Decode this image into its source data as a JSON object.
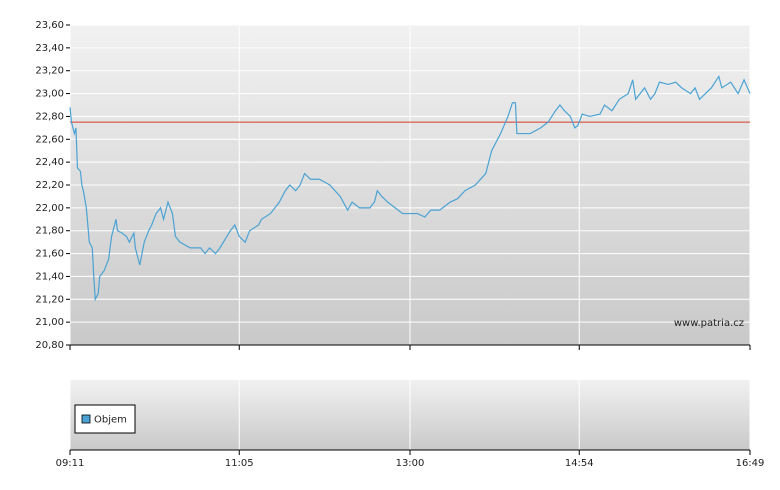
{
  "chart_data": {
    "type": "line",
    "annotation": "www.patria.cz",
    "volume_legend": "Objem",
    "reference_line": {
      "value": 22.75,
      "color": "#d03a2a"
    },
    "xlim": [
      551,
      1009
    ],
    "xticks": [
      {
        "value": 551,
        "label": "09:11"
      },
      {
        "value": 665,
        "label": "11:05"
      },
      {
        "value": 780,
        "label": "13:00"
      },
      {
        "value": 894,
        "label": "14:54"
      },
      {
        "value": 1009,
        "label": "16:49"
      }
    ],
    "ylim": [
      20.8,
      23.6
    ],
    "yticks": [
      {
        "value": 20.8,
        "label": "20,80"
      },
      {
        "value": 21.0,
        "label": "21,00"
      },
      {
        "value": 21.2,
        "label": "21,20"
      },
      {
        "value": 21.4,
        "label": "21,40"
      },
      {
        "value": 21.6,
        "label": "21,60"
      },
      {
        "value": 21.8,
        "label": "21,80"
      },
      {
        "value": 22.0,
        "label": "22,00"
      },
      {
        "value": 22.2,
        "label": "22,20"
      },
      {
        "value": 22.4,
        "label": "22,40"
      },
      {
        "value": 22.6,
        "label": "22,60"
      },
      {
        "value": 22.8,
        "label": "22,80"
      },
      {
        "value": 23.0,
        "label": "23,00"
      },
      {
        "value": 23.2,
        "label": "23,20"
      },
      {
        "value": 23.4,
        "label": "23,40"
      },
      {
        "value": 23.6,
        "label": "23,60"
      }
    ],
    "grid": true,
    "x": [
      551,
      552,
      554,
      555,
      556,
      558,
      559,
      560,
      562,
      563,
      564,
      566,
      567,
      568,
      570,
      571,
      574,
      577,
      579,
      582,
      583,
      586,
      589,
      591,
      594,
      595,
      598,
      601,
      604,
      606,
      609,
      612,
      614,
      617,
      620,
      622,
      625,
      632,
      639,
      642,
      645,
      649,
      652,
      659,
      662,
      665,
      669,
      672,
      678,
      680,
      686,
      692,
      696,
      699,
      703,
      706,
      709,
      713,
      716,
      719,
      726,
      733,
      738,
      741,
      746,
      753,
      756,
      758,
      761,
      765,
      770,
      775,
      780,
      785,
      790,
      794,
      800,
      807,
      812,
      817,
      824,
      831,
      835,
      841,
      846,
      849,
      851,
      852,
      858,
      861,
      868,
      873,
      878,
      881,
      884,
      888,
      891,
      893,
      896,
      901,
      908,
      911,
      916,
      921,
      927,
      930,
      932,
      938,
      942,
      945,
      948,
      954,
      959,
      963,
      969,
      972,
      975,
      979,
      983,
      988,
      990,
      996,
      1001,
      1005,
      1009
    ],
    "series": [
      {
        "color": "#4aa3d4",
        "values": [
          22.88,
          22.75,
          22.65,
          22.7,
          22.35,
          22.32,
          22.2,
          22.15,
          22.0,
          21.85,
          21.7,
          21.65,
          21.4,
          21.2,
          21.25,
          21.4,
          21.45,
          21.55,
          21.75,
          21.9,
          21.8,
          21.78,
          21.75,
          21.7,
          21.78,
          21.65,
          21.5,
          21.7,
          21.8,
          21.85,
          21.95,
          22.0,
          21.9,
          22.05,
          21.95,
          21.75,
          21.7,
          21.65,
          21.65,
          21.6,
          21.65,
          21.6,
          21.65,
          21.8,
          21.85,
          21.75,
          21.7,
          21.8,
          21.85,
          21.9,
          21.95,
          22.05,
          22.15,
          22.2,
          22.15,
          22.2,
          22.3,
          22.25,
          22.25,
          22.25,
          22.2,
          22.1,
          21.98,
          22.05,
          22.0,
          22.0,
          22.05,
          22.15,
          22.1,
          22.05,
          22.0,
          21.95,
          21.95,
          21.95,
          21.92,
          21.98,
          21.98,
          22.05,
          22.08,
          22.15,
          22.2,
          22.3,
          22.5,
          22.65,
          22.8,
          22.92,
          22.92,
          22.65,
          22.65,
          22.65,
          22.7,
          22.75,
          22.85,
          22.9,
          22.85,
          22.8,
          22.7,
          22.72,
          22.82,
          22.8,
          22.82,
          22.9,
          22.85,
          22.95,
          23.0,
          23.12,
          22.95,
          23.05,
          22.95,
          23.0,
          23.1,
          23.08,
          23.1,
          23.05,
          23.0,
          23.05,
          22.95,
          23.0,
          23.05,
          23.15,
          23.05,
          23.1,
          23.0,
          23.12,
          23.0
        ]
      }
    ]
  }
}
